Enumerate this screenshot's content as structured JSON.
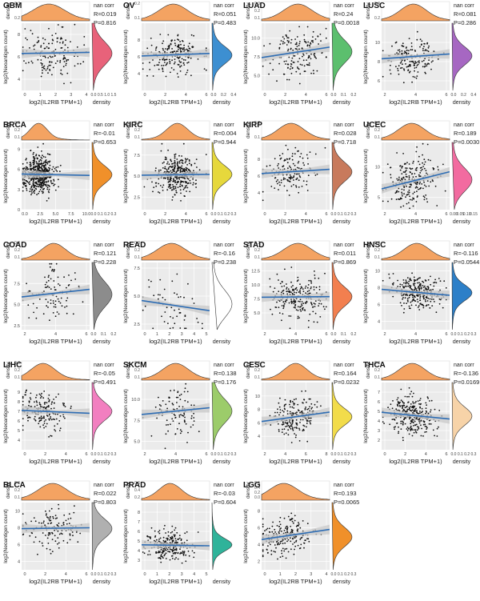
{
  "figure": {
    "x_label": "log2(IL2RB TPM+1)",
    "y_label": "log2(Neoantigen count)",
    "density_label": "density",
    "corr_label": "nan corr",
    "colors": {
      "top_density": "#f4a362",
      "regression_line": "#2e6db4",
      "ci_band": "#c8c8c8",
      "panel_bg": "#ebebeb",
      "grid": "#ffffff",
      "point": "#111111"
    }
  },
  "chart_data": [
    {
      "type": "scatter",
      "cancer": "GBM",
      "r_text": "R=0.019",
      "p_text": "P=0.816",
      "xlim": [
        0,
        4
      ],
      "ylim": [
        3,
        9
      ],
      "xticks": [
        "0",
        "1",
        "2",
        "3",
        "4"
      ],
      "yticks": [
        "4",
        "6",
        "8"
      ],
      "ytick_values": [
        4,
        6,
        8
      ],
      "dens_top_ticks": [
        "0.2",
        "0.3"
      ],
      "dens_right_ticks": [
        "0.0",
        "0.5",
        "1.0",
        "1.5"
      ],
      "dens_color": "#e8627a",
      "line": {
        "x0": 0,
        "y0": 6.3,
        "x1": 4,
        "y1": 6.4
      },
      "n": 150,
      "mx": 1.6,
      "sx": 0.9,
      "my": 6.3,
      "sy": 1.1
    },
    {
      "type": "scatter",
      "cancer": "OV",
      "r_text": "R=0.051",
      "p_text": "P=0.483",
      "xlim": [
        0,
        6
      ],
      "ylim": [
        2,
        10
      ],
      "xticks": [
        "0",
        "2",
        "4",
        "6"
      ],
      "yticks": [
        "4",
        "6",
        "8"
      ],
      "ytick_values": [
        4,
        6,
        8
      ],
      "dens_top_ticks": [
        "0.1",
        "0.2"
      ],
      "dens_right_ticks": [
        "0.0",
        "0.2",
        "0.4"
      ],
      "dens_color": "#3d8fd1",
      "line": {
        "x0": 0,
        "y0": 6.1,
        "x1": 6,
        "y1": 6.4
      },
      "n": 200,
      "mx": 2.8,
      "sx": 1.2,
      "my": 6.2,
      "sy": 1.1
    },
    {
      "type": "scatter",
      "cancer": "LUAD",
      "r_text": "R=0.24",
      "p_text": "P=0.0018",
      "xlim": [
        0,
        6
      ],
      "ylim": [
        3,
        12
      ],
      "xticks": [
        "0",
        "2",
        "4",
        "6"
      ],
      "yticks": [
        "5.0",
        "7.5",
        "10.0"
      ],
      "ytick_values": [
        5,
        7.5,
        10
      ],
      "dens_top_ticks": [
        "0.1",
        "0.2",
        "0.3"
      ],
      "dens_right_ticks": [
        "0.0",
        "0.1",
        "0.2"
      ],
      "dens_color": "#5cbf6e",
      "line": {
        "x0": 0,
        "y0": 7.4,
        "x1": 6,
        "y1": 8.8
      },
      "n": 160,
      "mx": 3.2,
      "sx": 1.2,
      "my": 8.2,
      "sy": 1.6
    },
    {
      "type": "scatter",
      "cancer": "LUSC",
      "r_text": "R=0.081",
      "p_text": "P=0.286",
      "xlim": [
        1,
        7
      ],
      "ylim": [
        5,
        12
      ],
      "xticks": [
        "2",
        "4",
        "6"
      ],
      "yticks": [
        "6",
        "8",
        "10"
      ],
      "ytick_values": [
        6,
        8,
        10
      ],
      "dens_top_ticks": [
        "0.2",
        "0.3"
      ],
      "dens_right_ticks": [
        "0.0",
        "0.2",
        "0.4"
      ],
      "dens_color": "#a667c2",
      "line": {
        "x0": 1,
        "y0": 8.3,
        "x1": 7,
        "y1": 8.8
      },
      "n": 170,
      "mx": 3.8,
      "sx": 1.1,
      "my": 8.6,
      "sy": 1.0
    },
    {
      "type": "scatter",
      "cancer": "BRCA",
      "r_text": "R=-0.01",
      "p_text": "P=0.653",
      "xlim": [
        0,
        10
      ],
      "ylim": [
        0,
        10
      ],
      "xticks": [
        "0.0",
        "2.5",
        "5.0",
        "7.5",
        "10.0"
      ],
      "yticks": [
        "0",
        "3",
        "6",
        "9"
      ],
      "ytick_values": [
        0,
        3,
        6,
        9
      ],
      "dens_top_ticks": [
        "0.1",
        "0.2",
        "0.3"
      ],
      "dens_right_ticks": [
        "0.0",
        "0.1",
        "0.2",
        "0.3"
      ],
      "dens_color": "#f0902a",
      "line": {
        "x0": 0,
        "y0": 5.3,
        "x1": 10,
        "y1": 5.1
      },
      "n": 500,
      "mx": 2.5,
      "sx": 1.2,
      "my": 5.2,
      "sy": 1.4
    },
    {
      "type": "scatter",
      "cancer": "KIRC",
      "r_text": "R=0.004",
      "p_text": "P=0.944",
      "xlim": [
        0,
        8
      ],
      "ylim": [
        1,
        9
      ],
      "xticks": [
        "0",
        "2",
        "4",
        "6"
      ],
      "yticks": [
        "2.5",
        "5.0",
        "7.5"
      ],
      "ytick_values": [
        2.5,
        5,
        7.5
      ],
      "dens_top_ticks": [
        "0.1",
        "0.2",
        "0.3"
      ],
      "dens_right_ticks": [
        "0.0",
        "0.1",
        "0.2",
        "0.3"
      ],
      "dens_color": "#e6d83c",
      "line": {
        "x0": 0,
        "y0": 5.1,
        "x1": 8,
        "y1": 5.2
      },
      "n": 350,
      "mx": 4.2,
      "sx": 1.2,
      "my": 5.2,
      "sy": 1.1
    },
    {
      "type": "scatter",
      "cancer": "KIRP",
      "r_text": "R=0.028",
      "p_text": "P=0.718",
      "xlim": [
        0,
        6
      ],
      "ylim": [
        2,
        10
      ],
      "xticks": [
        "0",
        "2",
        "4",
        "6"
      ],
      "yticks": [
        "4",
        "6",
        "8"
      ],
      "ytick_values": [
        4,
        6,
        8
      ],
      "dens_top_ticks": [
        "0.1",
        "0.2"
      ],
      "dens_right_ticks": [
        "0.0",
        "0.1",
        "0.2",
        "0.3"
      ],
      "dens_color": "#c87a5c",
      "line": {
        "x0": 0,
        "y0": 6.3,
        "x1": 6,
        "y1": 6.8
      },
      "n": 150,
      "mx": 2.6,
      "sx": 1.1,
      "my": 6.5,
      "sy": 1.2
    },
    {
      "type": "scatter",
      "cancer": "UCEC",
      "r_text": "R=0.189",
      "p_text": "P=0.0030",
      "xlim": [
        0,
        7
      ],
      "ylim": [
        3,
        14
      ],
      "xticks": [
        "2",
        "4",
        "6"
      ],
      "yticks": [
        "5",
        "10"
      ],
      "ytick_values": [
        5,
        10
      ],
      "dens_top_ticks": [
        "0.1",
        "0.2",
        "0.3"
      ],
      "dens_right_ticks": [
        "0.00",
        "0.05",
        "0.10",
        "0.15"
      ],
      "dens_color": "#f26ba0",
      "line": {
        "x0": 0,
        "y0": 6.4,
        "x1": 7,
        "y1": 9.2
      },
      "n": 220,
      "mx": 3.1,
      "sx": 1.3,
      "my": 7.9,
      "sy": 2.0
    },
    {
      "type": "scatter",
      "cancer": "COAD",
      "r_text": "R=0.121",
      "p_text": "P=0.228",
      "xlim": [
        0,
        7
      ],
      "ylim": [
        2,
        10
      ],
      "xticks": [
        "2",
        "4",
        "6"
      ],
      "yticks": [
        "2.5",
        "5.0",
        "7.5"
      ],
      "ytick_values": [
        2.5,
        5,
        7.5
      ],
      "dens_top_ticks": [
        "0.1",
        "0.2",
        "0.3"
      ],
      "dens_right_ticks": [
        "0.0",
        "0.1",
        "0.2"
      ],
      "dens_color": "#8c8c8c",
      "line": {
        "x0": 0,
        "y0": 5.9,
        "x1": 7,
        "y1": 6.8
      },
      "n": 100,
      "mx": 3.3,
      "sx": 1.2,
      "my": 6.2,
      "sy": 1.6
    },
    {
      "type": "scatter",
      "cancer": "READ",
      "r_text": "R=-0.16",
      "p_text": "P=0.238",
      "xlim": [
        0,
        5
      ],
      "ylim": [
        2,
        8
      ],
      "xticks": [
        "0",
        "1",
        "2",
        "3",
        "4",
        "5"
      ],
      "yticks": [
        "2.5",
        "5.0",
        "7.5"
      ],
      "ytick_values": [
        2.5,
        5,
        7.5
      ],
      "dens_top_ticks": [
        "0.1",
        "0.2",
        "0.3"
      ],
      "dens_right_ticks": [],
      "dens_color": "#ffffff",
      "line": {
        "x0": 0,
        "y0": 4.6,
        "x1": 5,
        "y1": 3.7
      },
      "n": 55,
      "mx": 2.2,
      "sx": 1.0,
      "my": 4.3,
      "sy": 1.3
    },
    {
      "type": "scatter",
      "cancer": "STAD",
      "r_text": "R=0.011",
      "p_text": "P=0.869",
      "xlim": [
        0,
        6
      ],
      "ylim": [
        2,
        14
      ],
      "xticks": [
        "2",
        "4",
        "6"
      ],
      "yticks": [
        "5.0",
        "7.5",
        "10.0",
        "12.5"
      ],
      "ytick_values": [
        5,
        7.5,
        10,
        12.5
      ],
      "dens_top_ticks": [
        "0.1",
        "0.2",
        "0.3"
      ],
      "dens_right_ticks": [
        "0.0",
        "0.1",
        "0.2"
      ],
      "dens_color": "#f27f4f",
      "line": {
        "x0": 0,
        "y0": 7.8,
        "x1": 6,
        "y1": 7.9
      },
      "n": 220,
      "mx": 3.2,
      "sx": 1.2,
      "my": 7.9,
      "sy": 1.8
    },
    {
      "type": "scatter",
      "cancer": "HNSC",
      "r_text": "R=-0.116",
      "p_text": "P=0.0544",
      "xlim": [
        0,
        6
      ],
      "ylim": [
        3,
        11
      ],
      "xticks": [
        "2",
        "4",
        "6"
      ],
      "yticks": [
        "4",
        "6",
        "8",
        "10"
      ],
      "ytick_values": [
        4,
        6,
        8,
        10
      ],
      "dens_top_ticks": [
        "0.1",
        "0.2",
        "0.3"
      ],
      "dens_right_ticks": [
        "0.0",
        "0.1",
        "0.2",
        "0.3"
      ],
      "dens_color": "#2c7fc8",
      "line": {
        "x0": 0,
        "y0": 7.8,
        "x1": 6,
        "y1": 7.1
      },
      "n": 280,
      "mx": 3.1,
      "sx": 1.1,
      "my": 7.4,
      "sy": 1.0
    },
    {
      "type": "scatter",
      "cancer": "LIHC",
      "r_text": "R=-0.05",
      "p_text": "P=0.491",
      "xlim": [
        0,
        7
      ],
      "ylim": [
        3,
        10
      ],
      "xticks": [
        "0",
        "2",
        "4",
        "6"
      ],
      "yticks": [
        "4",
        "5",
        "6",
        "7",
        "8",
        "9"
      ],
      "ytick_values": [
        4,
        5,
        6,
        7,
        8,
        9
      ],
      "dens_top_ticks": [
        "0.1",
        "0.2",
        "0.3"
      ],
      "dens_right_ticks": [
        "0.0",
        "0.1",
        "0.2",
        "0.3"
      ],
      "dens_color": "#f27fc0",
      "line": {
        "x0": 0,
        "y0": 7.1,
        "x1": 7,
        "y1": 6.8
      },
      "n": 180,
      "mx": 2.2,
      "sx": 1.2,
      "my": 7.0,
      "sy": 1.0
    },
    {
      "type": "scatter",
      "cancer": "SKCM",
      "r_text": "R=0.138",
      "p_text": "P=0.176",
      "xlim": [
        0,
        7
      ],
      "ylim": [
        4,
        12
      ],
      "xticks": [
        "2",
        "4",
        "6"
      ],
      "yticks": [
        "5.0",
        "7.5",
        "10.0"
      ],
      "ytick_values": [
        5,
        7.5,
        10
      ],
      "dens_top_ticks": [
        "0.1",
        "0.2",
        "0.3"
      ],
      "dens_right_ticks": [
        "0.0",
        "0.1",
        "0.2",
        "0.3"
      ],
      "dens_color": "#9ccc6a",
      "line": {
        "x0": 0,
        "y0": 8.2,
        "x1": 7,
        "y1": 9.0
      },
      "n": 100,
      "mx": 3.5,
      "sx": 1.3,
      "my": 8.6,
      "sy": 1.5
    },
    {
      "type": "scatter",
      "cancer": "CESC",
      "r_text": "R=0.164",
      "p_text": "P=0.0232",
      "xlim": [
        0,
        8
      ],
      "ylim": [
        2,
        12
      ],
      "xticks": [
        "2",
        "4",
        "6",
        "8"
      ],
      "yticks": [
        "4",
        "6",
        "8",
        "10"
      ],
      "ytick_values": [
        4,
        6,
        8,
        10
      ],
      "dens_top_ticks": [
        "0.1",
        "0.2",
        "0.3"
      ],
      "dens_right_ticks": [
        "0.0",
        "0.1",
        "0.2",
        "0.3"
      ],
      "dens_color": "#f2dc4a",
      "line": {
        "x0": 0,
        "y0": 6.2,
        "x1": 8,
        "y1": 7.6
      },
      "n": 200,
      "mx": 4.0,
      "sx": 1.3,
      "my": 6.9,
      "sy": 1.3
    },
    {
      "type": "scatter",
      "cancer": "THCA",
      "r_text": "R=-0.136",
      "p_text": "P=0.0169",
      "xlim": [
        0,
        6
      ],
      "ylim": [
        1,
        8
      ],
      "xticks": [
        "0",
        "2",
        "4",
        "6"
      ],
      "yticks": [
        "2",
        "3",
        "4",
        "5",
        "6",
        "7"
      ],
      "ytick_values": [
        2,
        3,
        4,
        5,
        6,
        7
      ],
      "dens_top_ticks": [
        "0.1",
        "0.2",
        "0.3"
      ],
      "dens_right_ticks": [
        "0.0",
        "0.1",
        "0.2",
        "0.3"
      ],
      "dens_color": "#f7d3a8",
      "line": {
        "x0": 0,
        "y0": 4.9,
        "x1": 6,
        "y1": 4.2
      },
      "n": 300,
      "mx": 2.7,
      "sx": 1.1,
      "my": 4.5,
      "sy": 1.0
    },
    {
      "type": "scatter",
      "cancer": "BLCA",
      "r_text": "R=0.022",
      "p_text": "P=0.803",
      "xlim": [
        0,
        7
      ],
      "ylim": [
        3,
        11
      ],
      "xticks": [
        "0",
        "2",
        "4",
        "6"
      ],
      "yticks": [
        "4",
        "6",
        "8",
        "10"
      ],
      "ytick_values": [
        4,
        6,
        8,
        10
      ],
      "dens_top_ticks": [
        "0.1",
        "0.2",
        "0.3"
      ],
      "dens_right_ticks": [
        "0.0",
        "0.1",
        "0.2",
        "0.3"
      ],
      "dens_color": "#b0b0b0",
      "line": {
        "x0": 0,
        "y0": 7.9,
        "x1": 7,
        "y1": 8.0
      },
      "n": 130,
      "mx": 3.2,
      "sx": 1.4,
      "my": 7.9,
      "sy": 1.2
    },
    {
      "type": "scatter",
      "cancer": "PRAD",
      "r_text": "R=-0.03",
      "p_text": "P=0.604",
      "xlim": [
        0,
        5
      ],
      "ylim": [
        2,
        9
      ],
      "xticks": [
        "0",
        "1",
        "2",
        "3",
        "4",
        "5"
      ],
      "yticks": [
        "3",
        "4",
        "5",
        "6",
        "7",
        "8"
      ],
      "ytick_values": [
        3,
        4,
        5,
        6,
        7,
        8
      ],
      "dens_top_ticks": [
        "0.2",
        "0.4",
        "0.6"
      ],
      "dens_right_ticks": [],
      "dens_color": "#2fb39a",
      "line": {
        "x0": 0,
        "y0": 4.6,
        "x1": 5,
        "y1": 4.5
      },
      "n": 260,
      "mx": 2.1,
      "sx": 0.8,
      "my": 4.6,
      "sy": 0.7
    },
    {
      "type": "scatter",
      "cancer": "LGG",
      "r_text": "R=0.193",
      "p_text": "P=0.0065",
      "xlim": [
        0,
        4
      ],
      "ylim": [
        1,
        9
      ],
      "xticks": [
        "0",
        "1",
        "2",
        "3",
        "4"
      ],
      "yticks": [
        "2",
        "4",
        "6",
        "8"
      ],
      "ytick_values": [
        2,
        4,
        6,
        8
      ],
      "dens_top_ticks": [
        "0.0",
        "0.2",
        "0.4",
        "0.6"
      ],
      "dens_right_ticks": [
        "0.0",
        "0.1",
        "0.2",
        "0.3"
      ],
      "dens_color": "#f0902a",
      "line": {
        "x0": 0,
        "y0": 4.6,
        "x1": 4,
        "y1": 5.8
      },
      "n": 200,
      "mx": 1.3,
      "sx": 0.8,
      "my": 4.9,
      "sy": 1.2
    }
  ]
}
